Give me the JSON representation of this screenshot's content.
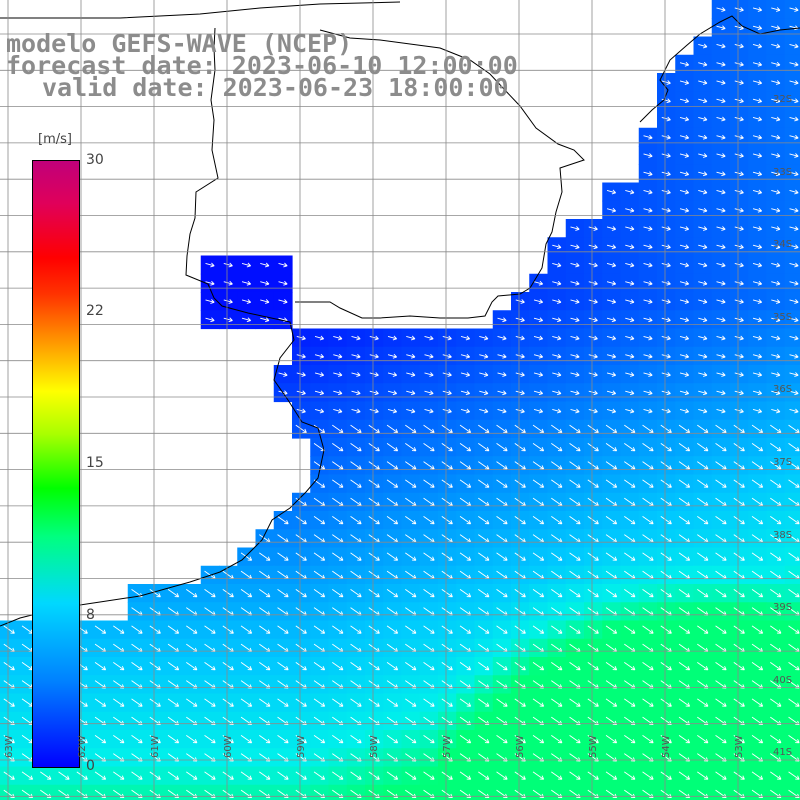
{
  "title": {
    "line1": "modelo GEFS-WAVE (NCEP)",
    "line2": "forecast date: 2023-06-10 12:00:00",
    "line3": "valid date: 2023-06-23 18:00:00"
  },
  "colorbar": {
    "unit": "[m/s]",
    "ticks": [
      "30",
      "22",
      "15",
      "8",
      "0"
    ]
  },
  "lat_labels": [
    "32S",
    "33S",
    "34S",
    "35S",
    "36S",
    "37S",
    "38S",
    "39S",
    "40S",
    "41S"
  ],
  "lon_labels": [
    "63W",
    "62W",
    "61W",
    "60W",
    "59W",
    "58W",
    "57W",
    "56W",
    "55W",
    "54W",
    "53W"
  ],
  "colors": {
    "land": "#ffffff",
    "coast": "#000000",
    "grid": "#888888",
    "arrow": "#ffffff",
    "text": "#8c8c8c"
  }
}
